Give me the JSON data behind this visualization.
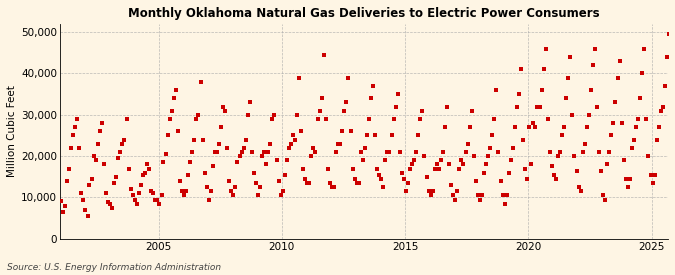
{
  "title": "Monthly Oklahoma Natural Gas Deliveries to Electric Power Consumers",
  "ylabel": "Million Cubic Feet",
  "source": "Source: U.S. Energy Information Administration",
  "background_color": "#FEF5E4",
  "marker_color": "#CC0000",
  "grid_color": "#AAAAAA",
  "ylim": [
    0,
    52000
  ],
  "yticks": [
    0,
    10000,
    20000,
    30000,
    40000,
    50000
  ],
  "ytick_labels": [
    "0",
    "10,000",
    "20,000",
    "30,000",
    "40,000",
    "50,000"
  ],
  "xticks_years": [
    2005,
    2010,
    2015,
    2020,
    2025
  ],
  "monthly_data": [
    9200,
    6500,
    8000,
    14000,
    17000,
    22000,
    25000,
    27000,
    29000,
    22000,
    11000,
    9500,
    7000,
    5500,
    13000,
    14500,
    20000,
    19000,
    23000,
    26000,
    28000,
    18000,
    11000,
    9000,
    8500,
    7500,
    13500,
    15000,
    19500,
    21000,
    23000,
    24000,
    29000,
    17000,
    12000,
    10500,
    9500,
    8500,
    11000,
    13000,
    15500,
    16000,
    18000,
    17000,
    11500,
    11000,
    9500,
    9500,
    8500,
    10500,
    18500,
    20500,
    25000,
    29000,
    31000,
    34000,
    36000,
    26000,
    14000,
    11500,
    10500,
    11500,
    15500,
    18500,
    21000,
    24000,
    29000,
    30000,
    38000,
    24000,
    16000,
    12500,
    9500,
    11500,
    17500,
    21000,
    21000,
    23000,
    27000,
    32000,
    31000,
    22000,
    14000,
    11500,
    10500,
    12500,
    18500,
    20000,
    21000,
    22000,
    24000,
    30000,
    33000,
    21000,
    16000,
    13500,
    10500,
    12500,
    20000,
    21000,
    18000,
    21000,
    23000,
    29000,
    30000,
    19000,
    14000,
    10500,
    11500,
    15500,
    19000,
    22000,
    23000,
    25000,
    24000,
    30000,
    39000,
    26000,
    17000,
    14500,
    13500,
    13500,
    20000,
    22000,
    21000,
    29000,
    31000,
    34000,
    44500,
    29000,
    17000,
    13500,
    12500,
    12500,
    21000,
    23000,
    23000,
    26000,
    31000,
    33000,
    39000,
    26000,
    17000,
    14500,
    13500,
    13500,
    21000,
    19000,
    22000,
    25000,
    29000,
    34000,
    37000,
    25000,
    17000,
    15500,
    14500,
    12500,
    19000,
    21000,
    21000,
    25000,
    29000,
    32000,
    35000,
    21000,
    16000,
    14500,
    11500,
    13500,
    17000,
    18000,
    19000,
    21000,
    25000,
    29000,
    31000,
    20000,
    15000,
    11500,
    10500,
    11500,
    17000,
    18000,
    17000,
    19000,
    21000,
    27000,
    32000,
    18000,
    13000,
    10500,
    9500,
    11500,
    17000,
    19000,
    18000,
    21000,
    23000,
    27000,
    31000,
    20000,
    14000,
    10500,
    9500,
    10500,
    16000,
    18000,
    20000,
    22000,
    25000,
    29000,
    36000,
    21000,
    14000,
    10500,
    8500,
    10500,
    16000,
    19000,
    22000,
    27000,
    32000,
    35000,
    41000,
    24000,
    17000,
    14500,
    27000,
    18000,
    28000,
    27000,
    32000,
    32000,
    36000,
    41000,
    46000,
    29000,
    21000,
    17500,
    15500,
    14500,
    20000,
    21000,
    25000,
    27000,
    34000,
    39000,
    44000,
    30000,
    20000,
    16500,
    12500,
    11500,
    21000,
    23000,
    27000,
    30000,
    36000,
    42000,
    46000,
    32000,
    21000,
    16500,
    10500,
    9500,
    18000,
    21000,
    25000,
    28000,
    33000,
    39000,
    43000,
    28000,
    19000,
    14500,
    12500,
    14500,
    22000,
    24000,
    27000,
    29000,
    34000,
    40000,
    46000,
    29000,
    20000,
    15500,
    13500,
    15500,
    24000,
    27000,
    31000,
    32000,
    37000,
    44000,
    49500,
    32000
  ]
}
